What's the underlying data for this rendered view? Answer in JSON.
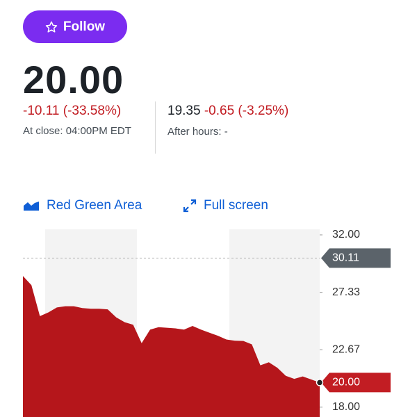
{
  "follow_button": "Follow",
  "quote": {
    "price": "20.00",
    "change": "-10.11 (-33.58%)",
    "close_time": "At close: 04:00PM EDT",
    "after_hours_price": "19.35",
    "after_hours_change": "-0.65 (-3.25%)",
    "after_hours_label": "After hours: -"
  },
  "toolbar": {
    "chart_type": "Red Green Area",
    "full_screen": "Full screen"
  },
  "chart_data": {
    "type": "area",
    "color": "#b5161b",
    "values": [
      28.66,
      27.92,
      25.4,
      25.7,
      26.1,
      26.2,
      26.2,
      26.05,
      26.0,
      26.0,
      25.95,
      25.3,
      24.9,
      24.7,
      23.2,
      24.3,
      24.5,
      24.45,
      24.4,
      24.3,
      24.6,
      24.3,
      24.05,
      23.8,
      23.5,
      23.4,
      23.38,
      23.1,
      21.4,
      21.65,
      21.2,
      20.55,
      20.3,
      20.5,
      20.25,
      20.0
    ],
    "ylim": [
      17.2,
      32.45
    ],
    "yticks": [
      {
        "value": 32,
        "label": "32.00"
      },
      27.33,
      22.67,
      {
        "value": 18,
        "label": "18.00"
      }
    ],
    "previous_close": 30.11,
    "current": {
      "value": 20,
      "label": "20.00"
    }
  }
}
